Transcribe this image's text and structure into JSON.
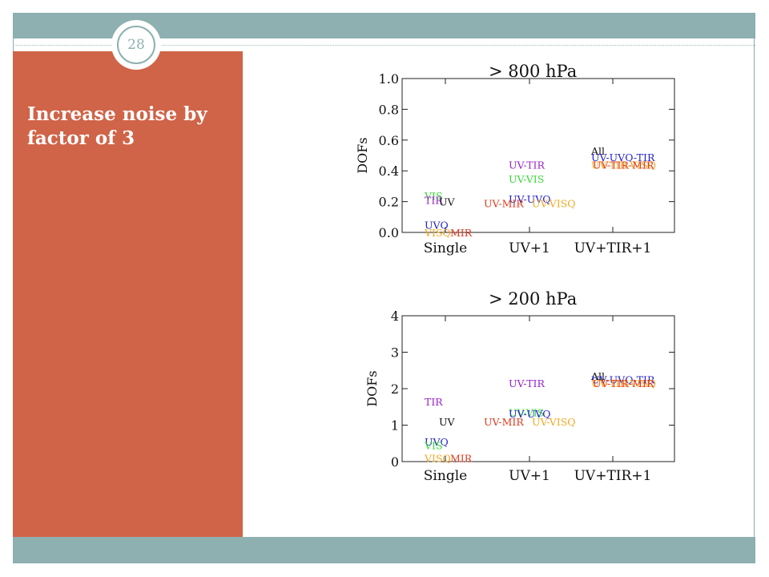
{
  "slide": {
    "number": "28",
    "title": "Increase noise by factor of 3"
  },
  "colors": {
    "band": "#8eb0b0",
    "sidebar": "#d06448",
    "black": "#111111",
    "purple": "#9a22c9",
    "green": "#39d939",
    "orange": "#f2a922",
    "red": "#e03a1e",
    "blue": "#2323c8"
  },
  "chart_data": [
    {
      "type": "scatter",
      "title": "> 800 hPa",
      "ylabel": "DOFs",
      "xlabel": "",
      "categories": [
        "Single",
        "UV+1",
        "UV+TIR+1"
      ],
      "ylim": [
        0.0,
        1.0
      ],
      "yticks": [
        "0.0",
        "0.2",
        "0.4",
        "0.6",
        "0.8",
        "1.0"
      ],
      "points": [
        {
          "label": "VIS",
          "x": "Single",
          "y": 0.24,
          "color": "#39d939"
        },
        {
          "label": "TIR",
          "x": "Single",
          "y": 0.21,
          "color": "#9a22c9"
        },
        {
          "label": "UV",
          "x": "Single",
          "y": 0.2,
          "color": "#111111"
        },
        {
          "label": "UVQ",
          "x": "Single",
          "y": 0.05,
          "color": "#2323c8"
        },
        {
          "label": "VISQ",
          "x": "Single",
          "y": 0.0,
          "color": "#f2a922"
        },
        {
          "label": "MIR",
          "x": "Single",
          "y": 0.0,
          "color": "#e03a1e"
        },
        {
          "label": "UV-TIR",
          "x": "UV+1",
          "y": 0.44,
          "color": "#9a22c9"
        },
        {
          "label": "UV-VIS",
          "x": "UV+1",
          "y": 0.35,
          "color": "#39d939"
        },
        {
          "label": "UV-UVQ",
          "x": "UV+1",
          "y": 0.22,
          "color": "#2323c8"
        },
        {
          "label": "UV-MIR",
          "x": "UV+1",
          "y": 0.19,
          "color": "#e03a1e"
        },
        {
          "label": "UV-VISQ",
          "x": "UV+1",
          "y": 0.19,
          "color": "#f2a922"
        },
        {
          "label": "All",
          "x": "UV+TIR+1",
          "y": 0.53,
          "color": "#111111"
        },
        {
          "label": "UV-UVQ-TIR",
          "x": "UV+TIR+1",
          "y": 0.49,
          "color": "#2323c8"
        },
        {
          "label": "UV-TIR-VISQ",
          "x": "UV+TIR+1",
          "y": 0.44,
          "color": "#f2a922"
        },
        {
          "label": "UV-TIR-MIR",
          "x": "UV+TIR+1",
          "y": 0.44,
          "color": "#e03a1e"
        }
      ]
    },
    {
      "type": "scatter",
      "title": "> 200 hPa",
      "ylabel": "DOFs",
      "xlabel": "",
      "categories": [
        "Single",
        "UV+1",
        "UV+TIR+1"
      ],
      "ylim": [
        0,
        4
      ],
      "yticks": [
        "0",
        "1",
        "2",
        "3",
        "4"
      ],
      "points": [
        {
          "label": "TIR",
          "x": "Single",
          "y": 1.65,
          "color": "#9a22c9"
        },
        {
          "label": "UV",
          "x": "Single",
          "y": 1.1,
          "color": "#111111"
        },
        {
          "label": "UVQ",
          "x": "Single",
          "y": 0.55,
          "color": "#2323c8"
        },
        {
          "label": "VIS",
          "x": "Single",
          "y": 0.45,
          "color": "#39d939"
        },
        {
          "label": "VISQ",
          "x": "Single",
          "y": 0.1,
          "color": "#f2a922"
        },
        {
          "label": "MIR",
          "x": "Single",
          "y": 0.1,
          "color": "#e03a1e"
        },
        {
          "label": "UV-TIR",
          "x": "UV+1",
          "y": 2.15,
          "color": "#9a22c9"
        },
        {
          "label": "UV-VIS",
          "x": "UV+1",
          "y": 1.35,
          "color": "#39d939"
        },
        {
          "label": "UV-UVQ",
          "x": "UV+1",
          "y": 1.32,
          "color": "#2323c8"
        },
        {
          "label": "UV-MIR",
          "x": "UV+1",
          "y": 1.1,
          "color": "#e03a1e"
        },
        {
          "label": "UV-VISQ",
          "x": "UV+1",
          "y": 1.1,
          "color": "#f2a922"
        },
        {
          "label": "All",
          "x": "UV+TIR+1",
          "y": 2.35,
          "color": "#111111"
        },
        {
          "label": "UV-UVQ-TIR",
          "x": "UV+TIR+1",
          "y": 2.25,
          "color": "#2323c8"
        },
        {
          "label": "UV-TIR-VISQ",
          "x": "UV+TIR+1",
          "y": 2.15,
          "color": "#f2a922"
        },
        {
          "label": "UV-TIR-MIR",
          "x": "UV+TIR+1",
          "y": 2.15,
          "color": "#e03a1e"
        }
      ]
    }
  ]
}
